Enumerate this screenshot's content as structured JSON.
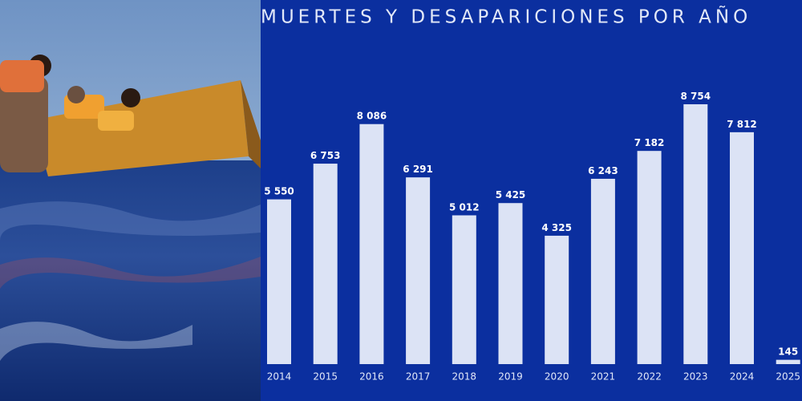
{
  "chart_data": {
    "type": "bar",
    "title": "MUERTES Y DESAPARICIONES POR AÑO",
    "categories": [
      "2014",
      "2015",
      "2016",
      "2017",
      "2018",
      "2019",
      "2020",
      "2021",
      "2022",
      "2023",
      "2024",
      "2025"
    ],
    "values": [
      5550,
      6753,
      8086,
      6291,
      5012,
      5425,
      4325,
      6243,
      7182,
      8754,
      7812,
      145
    ],
    "value_labels": [
      "5 550",
      "6 753",
      "8 086",
      "6 291",
      "5 012",
      "5 425",
      "4 325",
      "6 243",
      "7 182",
      "8 754",
      "7 812",
      "145"
    ],
    "color": "#dce3f5"
  }
}
